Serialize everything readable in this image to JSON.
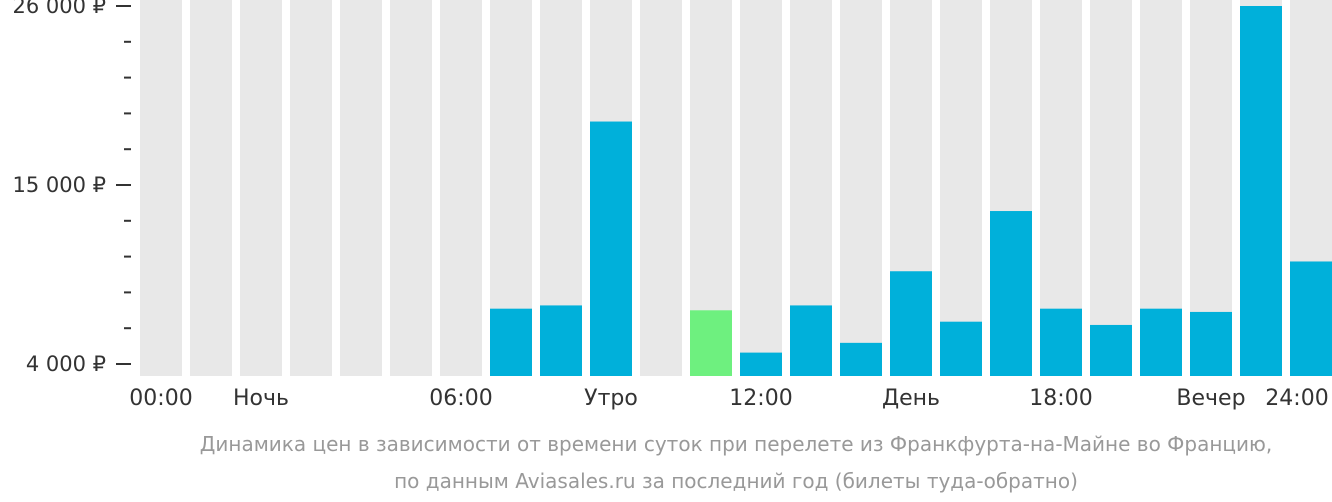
{
  "chart_data": {
    "type": "bar",
    "categories": [
      "00",
      "01",
      "02",
      "03",
      "04",
      "05",
      "06",
      "07",
      "08",
      "09",
      "10",
      "11",
      "12",
      "13",
      "14",
      "15",
      "16",
      "17",
      "18",
      "19",
      "20",
      "21",
      "22",
      "23"
    ],
    "values": [
      null,
      null,
      null,
      null,
      null,
      null,
      null,
      7400,
      7600,
      18900,
      null,
      7300,
      4700,
      7600,
      5300,
      9700,
      6600,
      13400,
      7400,
      6400,
      7400,
      7200,
      26000,
      10300
    ],
    "highlight_index": 11,
    "ylim": [
      4000,
      26000
    ],
    "yticks": [
      {
        "value": 4000,
        "label": "4 000 ₽"
      },
      {
        "value": 15000,
        "label": "15 000 ₽"
      },
      {
        "value": 26000,
        "label": "26 000 ₽"
      }
    ],
    "yminor_ticks": [
      6200,
      8400,
      10600,
      12800,
      17200,
      19400,
      21600,
      23800
    ],
    "xticks": [
      {
        "position": 0,
        "label": "00:00"
      },
      {
        "position": 2,
        "label": "Ночь"
      },
      {
        "position": 6,
        "label": "06:00"
      },
      {
        "position": 9,
        "label": "Утро"
      },
      {
        "position": 12,
        "label": "12:00"
      },
      {
        "position": 15,
        "label": "День"
      },
      {
        "position": 18,
        "label": "18:00"
      },
      {
        "position": 21,
        "label": "Вечер"
      },
      {
        "position": 24,
        "label": "24:00"
      }
    ],
    "colors": {
      "background_bar": "#e8e8e8",
      "bar": "#00b0da",
      "highlight": "#6ef07f",
      "axis": "#333333",
      "caption": "#999999"
    },
    "caption_lines": [
      "Динамика цен в зависимости от времени суток при перелете из Франкфурта-на-Майне во Францию,",
      "по данным Aviasales.ru за последний год (билеты туда-обратно)"
    ]
  }
}
